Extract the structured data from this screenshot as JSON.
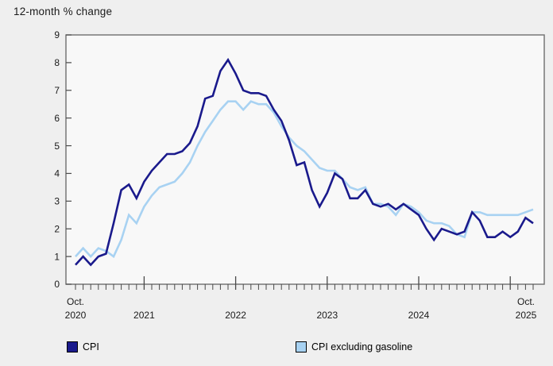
{
  "title": "12-month % change",
  "colors": {
    "cpi_line": "#1a1a8c",
    "cpi_ex_gasoline_line": "#a8d2f2",
    "background": "#efefef",
    "plot_background": "#f8f8f8",
    "frame": "#6e6e6e",
    "tick": "#4a4a4a",
    "text": "#1a1a1a"
  },
  "legend": {
    "cpi_label": "CPI",
    "cpi_ex_gasoline_label": "CPI excluding gasoline"
  },
  "y_axis": {
    "min": 0,
    "max": 9,
    "tick_labels": [
      "0",
      "1",
      "2",
      "3",
      "4",
      "5",
      "6",
      "7",
      "8",
      "9"
    ]
  },
  "x_axis": {
    "start": {
      "line1": "Oct.",
      "line2": "2020"
    },
    "end": {
      "line1": "Oct.",
      "line2": "2025"
    },
    "year_labels": [
      "2021",
      "2022",
      "2023",
      "2024"
    ],
    "minor_tick_unit": "month",
    "major_tick_unit": "year"
  },
  "chart_data": {
    "type": "line",
    "title": "12-month % change",
    "ylabel": "12-month % change",
    "xlabel": "",
    "ylim": [
      0,
      9
    ],
    "grid": false,
    "legend_position": "bottom",
    "x_frequency": "monthly",
    "x_start": "Oct 2020",
    "x_end": "Oct 2025",
    "series": [
      {
        "name": "CPI",
        "color": "#1a1a8c",
        "values": [
          0.7,
          1.0,
          0.7,
          1.0,
          1.1,
          2.2,
          3.4,
          3.6,
          3.1,
          3.7,
          4.1,
          4.4,
          4.7,
          4.7,
          4.8,
          5.1,
          5.7,
          6.7,
          6.8,
          7.7,
          8.1,
          7.6,
          7.0,
          6.9,
          6.9,
          6.8,
          6.3,
          5.9,
          5.2,
          4.3,
          4.4,
          3.4,
          2.8,
          3.3,
          4.0,
          3.8,
          3.1,
          3.1,
          3.4,
          2.9,
          2.8,
          2.9,
          2.7,
          2.9,
          2.7,
          2.5,
          2.0,
          1.6,
          2.0,
          1.9,
          1.8,
          1.9,
          2.6,
          2.3,
          1.7,
          1.7,
          1.9,
          1.7,
          1.9,
          2.4,
          2.2
        ]
      },
      {
        "name": "CPI excluding gasoline",
        "color": "#a8d2f2",
        "values": [
          1.0,
          1.3,
          1.0,
          1.3,
          1.2,
          1.0,
          1.6,
          2.5,
          2.2,
          2.8,
          3.2,
          3.5,
          3.6,
          3.7,
          4.0,
          4.4,
          5.0,
          5.5,
          5.9,
          6.3,
          6.6,
          6.6,
          6.3,
          6.6,
          6.5,
          6.5,
          6.2,
          5.7,
          5.3,
          5.0,
          4.8,
          4.5,
          4.2,
          4.1,
          4.1,
          3.8,
          3.5,
          3.4,
          3.5,
          2.9,
          2.9,
          2.8,
          2.5,
          2.9,
          2.8,
          2.6,
          2.3,
          2.2,
          2.2,
          2.1,
          1.8,
          1.7,
          2.6,
          2.6,
          2.5,
          2.5,
          2.5,
          2.5,
          2.5,
          2.6,
          2.7
        ]
      }
    ]
  }
}
